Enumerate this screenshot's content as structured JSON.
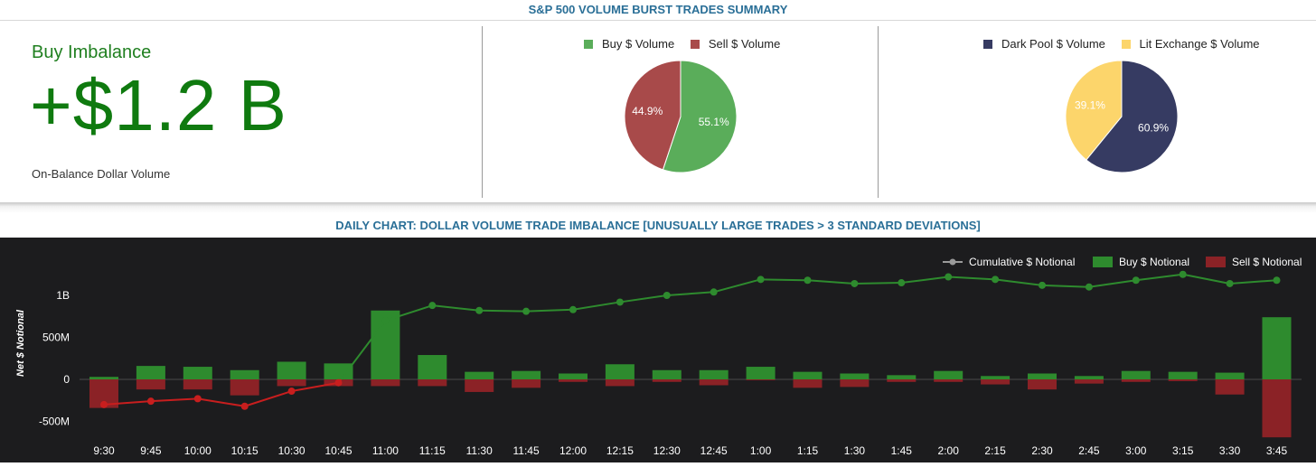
{
  "page_title": "S&P 500 VOLUME BURST TRADES SUMMARY",
  "imbalance": {
    "label": "Buy Imbalance",
    "value": "+$1.2 B",
    "sublabel": "On-Balance Dollar Volume"
  },
  "pie_buy_sell": {
    "legend": [
      {
        "name": "Buy $ Volume",
        "color": "#5aad5a"
      },
      {
        "name": "Sell $ Volume",
        "color": "#a84a4a"
      }
    ]
  },
  "pie_dark_lit": {
    "legend": [
      {
        "name": "Dark Pool $ Volume",
        "color": "#363b62"
      },
      {
        "name": "Lit Exchange $ Volume",
        "color": "#fcd56b"
      }
    ]
  },
  "chart_data": [
    {
      "type": "pie",
      "labels": [
        "Buy $ Volume",
        "Sell $ Volume"
      ],
      "values": [
        55.1,
        44.9
      ],
      "value_labels": [
        "55.1%",
        "44.9%"
      ],
      "colors": [
        "#5aad5a",
        "#a84a4a"
      ]
    },
    {
      "type": "pie",
      "labels": [
        "Dark Pool $ Volume",
        "Lit Exchange $ Volume"
      ],
      "values": [
        60.9,
        39.1
      ],
      "value_labels": [
        "60.9%",
        "39.1%"
      ],
      "colors": [
        "#363b62",
        "#fcd56b"
      ]
    },
    {
      "type": "bar",
      "title": "DAILY CHART: DOLLAR VOLUME TRADE IMBALANCE [UNUSUALLY LARGE TRADES > 3 STANDARD DEVIATIONS]",
      "ylabel": "Net $ Notional",
      "xlabel": "",
      "categories": [
        "9:30",
        "9:45",
        "10:00",
        "10:15",
        "10:30",
        "10:45",
        "11:00",
        "11:15",
        "11:30",
        "11:45",
        "12:00",
        "12:15",
        "12:30",
        "12:45",
        "1:00",
        "1:15",
        "1:30",
        "1:45",
        "2:00",
        "2:15",
        "2:30",
        "2:45",
        "3:00",
        "3:15",
        "3:30",
        "3:45"
      ],
      "yticks": [
        1000000000,
        500000000,
        0,
        -500000000
      ],
      "ytick_labels": [
        "1B",
        "500M",
        "0",
        "-500M"
      ],
      "ylim": [
        -700000000,
        1400000000
      ],
      "grid": false,
      "legend_position": "top-right",
      "legend": [
        {
          "name": "Cumulative $ Notional",
          "color": "#9a9a9a"
        },
        {
          "name": "Buy $ Notional",
          "color": "#2e8b2e"
        },
        {
          "name": "Sell $ Notional",
          "color": "#8b2226"
        }
      ],
      "series": [
        {
          "name": "Buy $ Notional",
          "kind": "bar",
          "color": "#2e8b2e",
          "values": [
            30000000,
            160000000,
            150000000,
            110000000,
            210000000,
            190000000,
            820000000,
            290000000,
            90000000,
            100000000,
            70000000,
            180000000,
            110000000,
            110000000,
            150000000,
            90000000,
            70000000,
            50000000,
            100000000,
            40000000,
            70000000,
            40000000,
            100000000,
            90000000,
            80000000,
            740000000
          ]
        },
        {
          "name": "Sell $ Notional",
          "kind": "bar",
          "color": "#8b2226",
          "values": [
            -340000000,
            -120000000,
            -120000000,
            -190000000,
            -80000000,
            -80000000,
            -80000000,
            -80000000,
            -150000000,
            -100000000,
            -30000000,
            -80000000,
            -30000000,
            -70000000,
            -10000000,
            -100000000,
            -90000000,
            -30000000,
            -30000000,
            -60000000,
            -120000000,
            -50000000,
            -30000000,
            -20000000,
            -180000000,
            -690000000
          ]
        },
        {
          "name": "Cumulative $ Notional",
          "kind": "line",
          "color_positive": "#2e8b2e",
          "color_negative": "#c81e1e",
          "values": [
            -300000000,
            -260000000,
            -230000000,
            -320000000,
            -140000000,
            -40000000,
            700000000,
            880000000,
            820000000,
            810000000,
            830000000,
            920000000,
            1000000000,
            1040000000,
            1190000000,
            1180000000,
            1140000000,
            1150000000,
            1220000000,
            1190000000,
            1120000000,
            1100000000,
            1180000000,
            1250000000,
            1140000000,
            1180000000
          ]
        }
      ]
    }
  ]
}
